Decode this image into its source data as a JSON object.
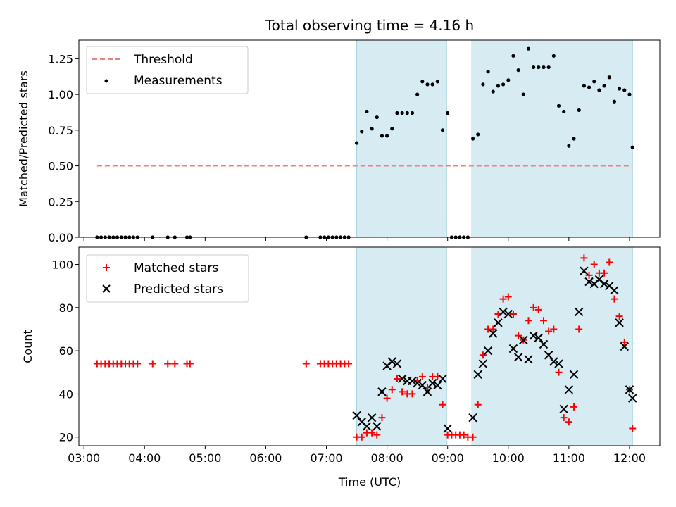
{
  "chart_data": [
    {
      "type": "scatter",
      "title": "Total observing time = 4.16 h",
      "xlabel": "",
      "ylabel": "Matched/Predicted stars",
      "xlim": [
        "02:55",
        "12:30"
      ],
      "ylim": [
        0,
        1.38
      ],
      "yticks": [
        0.0,
        0.25,
        0.5,
        0.75,
        1.0,
        1.25
      ],
      "ytick_labels": [
        "0.00",
        "0.25",
        "0.50",
        "0.75",
        "1.00",
        "1.25"
      ],
      "xticks": [
        "03:00",
        "04:00",
        "05:00",
        "06:00",
        "07:00",
        "08:00",
        "09:00",
        "10:00",
        "11:00",
        "12:00"
      ],
      "grid": false,
      "legend_position": "top-left",
      "shaded_intervals": [
        [
          "07:30",
          "08:59"
        ],
        [
          "09:24",
          "12:03"
        ]
      ],
      "threshold": {
        "name": "Threshold",
        "y": 0.5,
        "x_range": [
          "03:13",
          "12:03"
        ],
        "color": "#f08080"
      },
      "series": [
        {
          "name": "Measurements",
          "color": "#000000",
          "points": [
            [
              "03:13",
              0
            ],
            [
              "03:17",
              0
            ],
            [
              "03:21",
              0
            ],
            [
              "03:25",
              0
            ],
            [
              "03:29",
              0
            ],
            [
              "03:33",
              0
            ],
            [
              "03:37",
              0
            ],
            [
              "03:41",
              0
            ],
            [
              "03:45",
              0
            ],
            [
              "03:49",
              0
            ],
            [
              "03:53",
              0
            ],
            [
              "04:08",
              0
            ],
            [
              "04:23",
              0
            ],
            [
              "04:30",
              0
            ],
            [
              "04:42",
              0
            ],
            [
              "04:45",
              0
            ],
            [
              "06:40",
              0
            ],
            [
              "06:54",
              0
            ],
            [
              "06:58",
              0
            ],
            [
              "07:02",
              0
            ],
            [
              "07:06",
              0
            ],
            [
              "07:10",
              0
            ],
            [
              "07:14",
              0
            ],
            [
              "07:18",
              0
            ],
            [
              "07:22",
              0
            ],
            [
              "07:30",
              0.66
            ],
            [
              "07:35",
              0.74
            ],
            [
              "07:40",
              0.88
            ],
            [
              "07:45",
              0.76
            ],
            [
              "07:50",
              0.84
            ],
            [
              "07:55",
              0.71
            ],
            [
              "08:00",
              0.71
            ],
            [
              "08:05",
              0.76
            ],
            [
              "08:10",
              0.87
            ],
            [
              "08:15",
              0.87
            ],
            [
              "08:20",
              0.87
            ],
            [
              "08:25",
              0.87
            ],
            [
              "08:30",
              1.0
            ],
            [
              "08:35",
              1.09
            ],
            [
              "08:40",
              1.07
            ],
            [
              "08:45",
              1.07
            ],
            [
              "08:50",
              1.09
            ],
            [
              "08:55",
              0.75
            ],
            [
              "09:00",
              0.87
            ],
            [
              "09:04",
              0
            ],
            [
              "09:08",
              0
            ],
            [
              "09:12",
              0
            ],
            [
              "09:16",
              0
            ],
            [
              "09:20",
              0
            ],
            [
              "09:25",
              0.69
            ],
            [
              "09:30",
              0.72
            ],
            [
              "09:35",
              1.07
            ],
            [
              "09:40",
              1.16
            ],
            [
              "09:45",
              1.02
            ],
            [
              "09:50",
              1.06
            ],
            [
              "09:55",
              1.07
            ],
            [
              "10:00",
              1.1
            ],
            [
              "10:05",
              1.27
            ],
            [
              "10:10",
              1.17
            ],
            [
              "10:15",
              1.0
            ],
            [
              "10:20",
              1.32
            ],
            [
              "10:25",
              1.19
            ],
            [
              "10:30",
              1.19
            ],
            [
              "10:35",
              1.19
            ],
            [
              "10:40",
              1.19
            ],
            [
              "10:45",
              1.27
            ],
            [
              "10:50",
              0.92
            ],
            [
              "10:55",
              0.88
            ],
            [
              "11:00",
              0.64
            ],
            [
              "11:05",
              0.69
            ],
            [
              "11:10",
              0.89
            ],
            [
              "11:15",
              1.06
            ],
            [
              "11:20",
              1.05
            ],
            [
              "11:25",
              1.09
            ],
            [
              "11:30",
              1.03
            ],
            [
              "11:35",
              1.06
            ],
            [
              "11:40",
              1.12
            ],
            [
              "11:45",
              0.95
            ],
            [
              "11:50",
              1.04
            ],
            [
              "11:55",
              1.03
            ],
            [
              "12:00",
              1.0
            ],
            [
              "12:03",
              0.63
            ]
          ]
        }
      ]
    },
    {
      "type": "scatter",
      "title": "",
      "xlabel": "Time (UTC)",
      "ylabel": "Count",
      "xlim": [
        "02:55",
        "12:30"
      ],
      "ylim": [
        16,
        108
      ],
      "yticks": [
        20,
        40,
        60,
        80,
        100
      ],
      "ytick_labels": [
        "20",
        "40",
        "60",
        "80",
        "100"
      ],
      "xticks": [
        "03:00",
        "04:00",
        "05:00",
        "06:00",
        "07:00",
        "08:00",
        "09:00",
        "10:00",
        "11:00",
        "12:00"
      ],
      "xtick_labels": [
        "03:00",
        "04:00",
        "05:00",
        "06:00",
        "07:00",
        "08:00",
        "09:00",
        "10:00",
        "11:00",
        "12:00"
      ],
      "grid": false,
      "legend_position": "top-left",
      "shaded_intervals": [
        [
          "07:30",
          "08:59"
        ],
        [
          "09:24",
          "12:03"
        ]
      ],
      "series": [
        {
          "name": "Matched stars",
          "marker": "plus",
          "color": "#ff0000",
          "points": [
            [
              "03:13",
              54
            ],
            [
              "03:17",
              54
            ],
            [
              "03:21",
              54
            ],
            [
              "03:25",
              54
            ],
            [
              "03:29",
              54
            ],
            [
              "03:33",
              54
            ],
            [
              "03:37",
              54
            ],
            [
              "03:41",
              54
            ],
            [
              "03:45",
              54
            ],
            [
              "03:49",
              54
            ],
            [
              "03:53",
              54
            ],
            [
              "04:08",
              54
            ],
            [
              "04:23",
              54
            ],
            [
              "04:30",
              54
            ],
            [
              "04:42",
              54
            ],
            [
              "04:45",
              54
            ],
            [
              "06:40",
              54
            ],
            [
              "06:54",
              54
            ],
            [
              "06:58",
              54
            ],
            [
              "07:02",
              54
            ],
            [
              "07:06",
              54
            ],
            [
              "07:10",
              54
            ],
            [
              "07:14",
              54
            ],
            [
              "07:18",
              54
            ],
            [
              "07:22",
              54
            ],
            [
              "07:30",
              20
            ],
            [
              "07:35",
              20
            ],
            [
              "07:40",
              22
            ],
            [
              "07:45",
              22
            ],
            [
              "07:50",
              21
            ],
            [
              "07:55",
              29
            ],
            [
              "08:00",
              38
            ],
            [
              "08:05",
              42
            ],
            [
              "08:10",
              47
            ],
            [
              "08:15",
              41
            ],
            [
              "08:20",
              40
            ],
            [
              "08:25",
              40
            ],
            [
              "08:30",
              46
            ],
            [
              "08:35",
              48
            ],
            [
              "08:40",
              43
            ],
            [
              "08:45",
              48
            ],
            [
              "08:50",
              48
            ],
            [
              "08:55",
              35
            ],
            [
              "09:00",
              21
            ],
            [
              "09:04",
              21
            ],
            [
              "09:08",
              21
            ],
            [
              "09:12",
              21
            ],
            [
              "09:16",
              21
            ],
            [
              "09:20",
              20
            ],
            [
              "09:25",
              20
            ],
            [
              "09:30",
              35
            ],
            [
              "09:35",
              58
            ],
            [
              "09:40",
              70
            ],
            [
              "09:45",
              70
            ],
            [
              "09:50",
              77
            ],
            [
              "09:55",
              84
            ],
            [
              "10:00",
              85
            ],
            [
              "10:05",
              77
            ],
            [
              "10:10",
              67
            ],
            [
              "10:15",
              65
            ],
            [
              "10:20",
              74
            ],
            [
              "10:25",
              80
            ],
            [
              "10:30",
              79
            ],
            [
              "10:35",
              74
            ],
            [
              "10:40",
              69
            ],
            [
              "10:45",
              70
            ],
            [
              "10:50",
              50
            ],
            [
              "10:55",
              29
            ],
            [
              "11:00",
              27
            ],
            [
              "11:05",
              34
            ],
            [
              "11:10",
              70
            ],
            [
              "11:15",
              103
            ],
            [
              "11:20",
              95
            ],
            [
              "11:25",
              100
            ],
            [
              "11:30",
              96
            ],
            [
              "11:35",
              96
            ],
            [
              "11:40",
              101
            ],
            [
              "11:45",
              84
            ],
            [
              "11:50",
              76
            ],
            [
              "11:55",
              64
            ],
            [
              "12:00",
              42
            ],
            [
              "12:03",
              24
            ]
          ]
        },
        {
          "name": "Predicted stars",
          "marker": "x",
          "color": "#000000",
          "points": [
            [
              "07:30",
              30
            ],
            [
              "07:35",
              27
            ],
            [
              "07:40",
              25
            ],
            [
              "07:45",
              29
            ],
            [
              "07:50",
              25
            ],
            [
              "07:55",
              41
            ],
            [
              "08:00",
              53
            ],
            [
              "08:05",
              55
            ],
            [
              "08:10",
              54
            ],
            [
              "08:15",
              47
            ],
            [
              "08:20",
              46
            ],
            [
              "08:25",
              46
            ],
            [
              "08:30",
              45
            ],
            [
              "08:35",
              44
            ],
            [
              "08:40",
              41
            ],
            [
              "08:45",
              45
            ],
            [
              "08:50",
              44
            ],
            [
              "08:55",
              47
            ],
            [
              "09:00",
              24
            ],
            [
              "09:25",
              29
            ],
            [
              "09:30",
              49
            ],
            [
              "09:35",
              54
            ],
            [
              "09:40",
              60
            ],
            [
              "09:45",
              68
            ],
            [
              "09:50",
              73
            ],
            [
              "09:55",
              78
            ],
            [
              "10:00",
              77
            ],
            [
              "10:05",
              61
            ],
            [
              "10:10",
              57
            ],
            [
              "10:15",
              65
            ],
            [
              "10:20",
              56
            ],
            [
              "10:25",
              67
            ],
            [
              "10:30",
              66
            ],
            [
              "10:35",
              63
            ],
            [
              "10:40",
              58
            ],
            [
              "10:45",
              55
            ],
            [
              "10:50",
              54
            ],
            [
              "10:55",
              33
            ],
            [
              "11:00",
              42
            ],
            [
              "11:05",
              49
            ],
            [
              "11:10",
              78
            ],
            [
              "11:15",
              97
            ],
            [
              "11:20",
              92
            ],
            [
              "11:25",
              91
            ],
            [
              "11:30",
              93
            ],
            [
              "11:35",
              91
            ],
            [
              "11:40",
              90
            ],
            [
              "11:45",
              88
            ],
            [
              "11:50",
              73
            ],
            [
              "11:55",
              62
            ],
            [
              "12:00",
              42
            ],
            [
              "12:03",
              38
            ]
          ]
        }
      ]
    }
  ]
}
